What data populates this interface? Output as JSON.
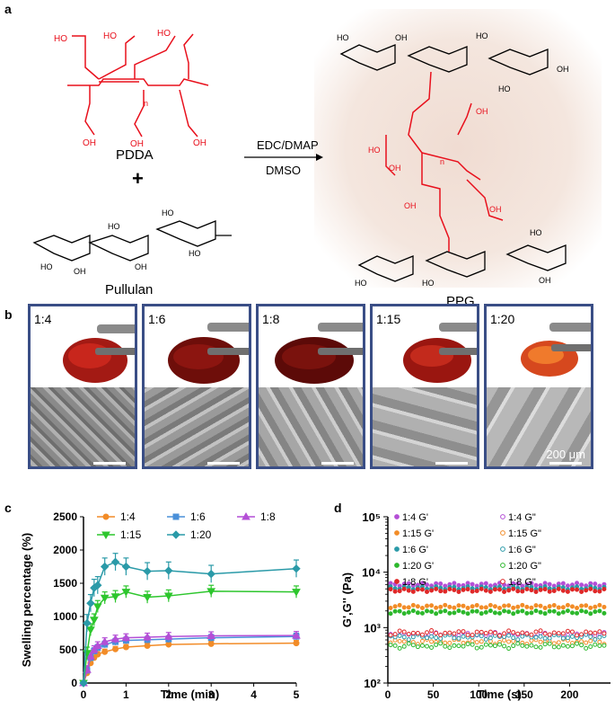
{
  "panel_a": {
    "label": "a",
    "pdda_name": "PDDA",
    "plus": "+",
    "pullulan_name": "Pullulan",
    "reagent_top": "EDC/DMAP",
    "reagent_bottom": "DMSO",
    "product_name": "PPG",
    "subscript_n": "n",
    "atoms": {
      "ho": "HO",
      "oh": "OH",
      "o": "O"
    }
  },
  "panel_b": {
    "label": "b",
    "ratios": [
      "1:4",
      "1:6",
      "1:8",
      "1:15",
      "1:20"
    ],
    "scale_text": "200 μm"
  },
  "panel_c": {
    "label": "c"
  },
  "panel_d": {
    "label": "d"
  },
  "chart_data": [
    {
      "type": "line",
      "xlabel": "Time (min)",
      "ylabel": "Swelling percentage (%)",
      "xlim": [
        0,
        5
      ],
      "ylim": [
        0,
        2500
      ],
      "xticks": [
        0,
        1,
        2,
        3,
        4,
        5
      ],
      "yticks": [
        0,
        500,
        1000,
        1500,
        2000,
        2500
      ],
      "legend_position": "top",
      "series": [
        {
          "name": "1:4",
          "color": "#f28c28",
          "marker": "circle",
          "x": [
            0,
            0.083,
            0.167,
            0.25,
            0.333,
            0.5,
            0.75,
            1,
            1.5,
            2,
            3,
            5
          ],
          "y": [
            0,
            150,
            300,
            380,
            430,
            470,
            510,
            540,
            560,
            580,
            590,
            600
          ],
          "err": 40
        },
        {
          "name": "1:6",
          "color": "#4a90d9",
          "marker": "square",
          "x": [
            0,
            0.083,
            0.167,
            0.25,
            0.333,
            0.5,
            0.75,
            1,
            1.5,
            2,
            3,
            5
          ],
          "y": [
            0,
            190,
            380,
            480,
            530,
            580,
            620,
            640,
            650,
            660,
            680,
            700
          ],
          "err": 50
        },
        {
          "name": "1:8",
          "color": "#b44fd6",
          "marker": "triangle",
          "x": [
            0,
            0.083,
            0.167,
            0.25,
            0.333,
            0.5,
            0.75,
            1,
            1.5,
            2,
            3,
            5
          ],
          "y": [
            0,
            200,
            400,
            500,
            560,
            620,
            660,
            680,
            690,
            700,
            710,
            715
          ],
          "err": 60
        },
        {
          "name": "1:15",
          "color": "#2dc62d",
          "marker": "triangle-down",
          "x": [
            0,
            0.083,
            0.167,
            0.25,
            0.333,
            0.5,
            0.75,
            1,
            1.5,
            2,
            3,
            5
          ],
          "y": [
            0,
            450,
            800,
            950,
            1150,
            1280,
            1300,
            1370,
            1290,
            1310,
            1380,
            1370
          ],
          "err": 90
        },
        {
          "name": "1:20",
          "color": "#2a9aa8",
          "marker": "diamond",
          "x": [
            0,
            0.083,
            0.167,
            0.25,
            0.333,
            0.5,
            0.75,
            1,
            1.5,
            2,
            3,
            5
          ],
          "y": [
            0,
            900,
            1200,
            1430,
            1470,
            1750,
            1820,
            1750,
            1680,
            1690,
            1640,
            1720
          ],
          "err": 130
        }
      ]
    },
    {
      "type": "scatter",
      "xlabel": "Time (s)",
      "ylabel": "G',G'' (Pa)",
      "xlim": [
        0,
        245
      ],
      "ylim": [
        100,
        100000
      ],
      "yscale": "log",
      "xticks": [
        0,
        50,
        100,
        150,
        200
      ],
      "ytick_labels": [
        "10²",
        "10³",
        "10⁴",
        "10⁵"
      ],
      "legend_position": "top",
      "series": [
        {
          "name": "1:4 G'",
          "color": "#b44fd6",
          "filled": true,
          "value": 6000
        },
        {
          "name": "1:4 G\"",
          "color": "#b44fd6",
          "filled": false,
          "value": 750
        },
        {
          "name": "1:15 G'",
          "color": "#f28c28",
          "filled": true,
          "value": 2400
        },
        {
          "name": "1:15 G\"",
          "color": "#f28c28",
          "filled": false,
          "value": 560
        },
        {
          "name": "1:6 G'",
          "color": "#2a9aa8",
          "filled": true,
          "value": 5200
        },
        {
          "name": "1:6 G\"",
          "color": "#2a9aa8",
          "filled": false,
          "value": 680
        },
        {
          "name": "1:20 G'",
          "color": "#2db82d",
          "filled": true,
          "value": 1900
        },
        {
          "name": "1:20 G\"",
          "color": "#2db82d",
          "filled": false,
          "value": 470
        },
        {
          "name": "1:8 G'",
          "color": "#e02828",
          "filled": true,
          "value": 4700
        },
        {
          "name": "1:8 G\"",
          "color": "#e02828",
          "filled": false,
          "value": 800
        }
      ]
    }
  ],
  "colors": {
    "frame": "#3a4e86",
    "red": "#e8101c",
    "glow": "#e8cfc2"
  }
}
